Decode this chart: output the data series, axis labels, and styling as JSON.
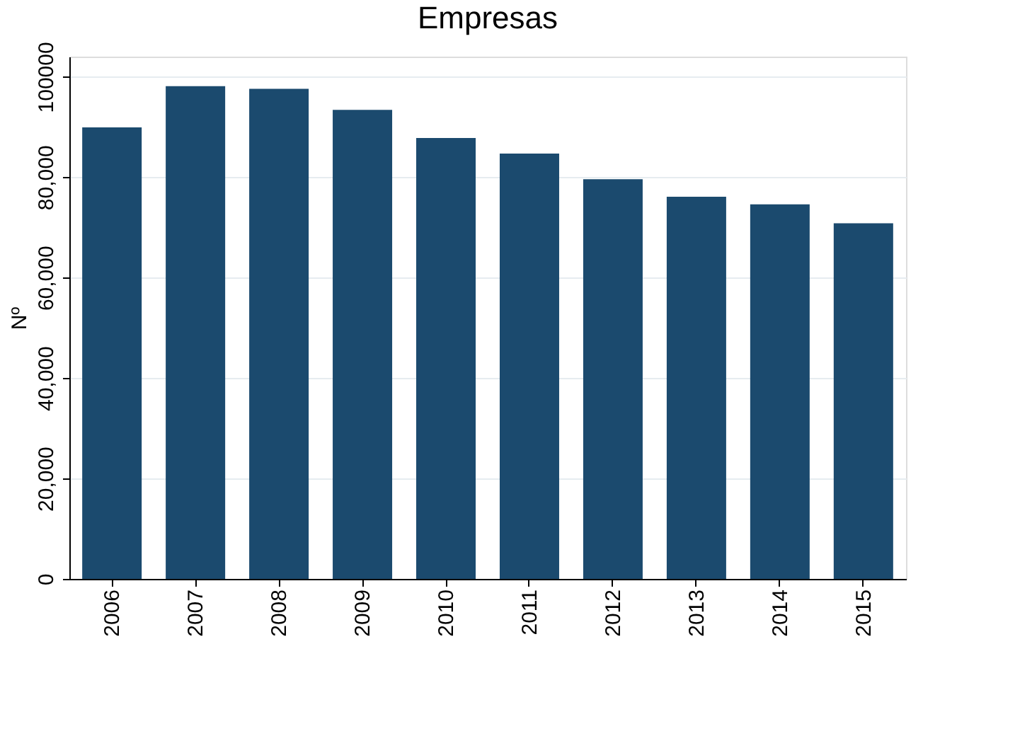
{
  "chart_data": {
    "type": "bar",
    "title": "Empresas",
    "ylabel": "Nº",
    "categories": [
      "2006",
      "2007",
      "2008",
      "2009",
      "2010",
      "2011",
      "2012",
      "2013",
      "2014",
      "2015"
    ],
    "values": [
      89900,
      98100,
      97600,
      93400,
      87800,
      84700,
      79600,
      76100,
      74600,
      70800
    ],
    "color": "#1b4a6e",
    "ylim": [
      0,
      104000
    ],
    "yticks": [
      0,
      {
        "value": 20000,
        "label": "20,000"
      },
      {
        "value": 40000,
        "label": "40,000"
      },
      {
        "value": 60000,
        "label": "60,000"
      },
      {
        "value": 80000,
        "label": "80,000"
      },
      {
        "value": 100000,
        "label": "100000"
      }
    ],
    "grid": "y"
  }
}
